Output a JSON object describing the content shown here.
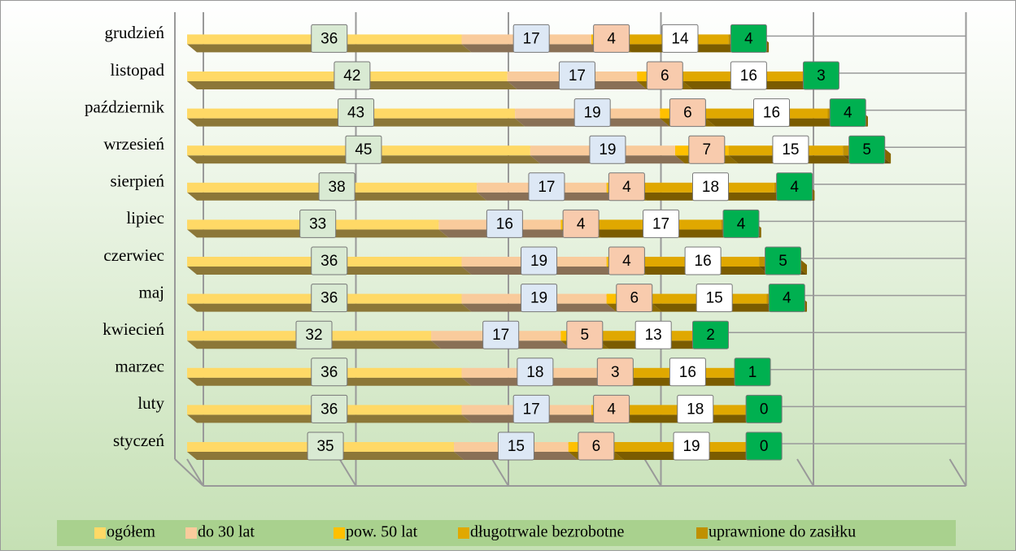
{
  "chart_data": {
    "type": "stacked-bar-horizontal-3d",
    "categories": [
      "styczeń",
      "luty",
      "marzec",
      "kwiecień",
      "maj",
      "czerwiec",
      "lipiec",
      "sierpień",
      "wrzesień",
      "październik",
      "listopad",
      "grudzień"
    ],
    "series": [
      {
        "name": "ogółem",
        "color": "#ffd966",
        "label_color": "#d9ead3",
        "values": [
          35,
          36,
          36,
          32,
          36,
          36,
          33,
          38,
          45,
          43,
          42,
          36
        ]
      },
      {
        "name": "do 30 lat",
        "color": "#f9cb9c",
        "label_color": "#dde8f5",
        "values": [
          15,
          17,
          18,
          17,
          19,
          19,
          16,
          17,
          19,
          19,
          17,
          17
        ]
      },
      {
        "name": "pow. 50 lat",
        "color": "#ffc000",
        "label_color": "#f8cbad",
        "values": [
          6,
          4,
          3,
          5,
          6,
          4,
          4,
          4,
          7,
          6,
          6,
          4
        ]
      },
      {
        "name": "długotrwale bezrobotne",
        "color": "#e0a800",
        "label_color": "#ffffff",
        "values": [
          19,
          18,
          16,
          13,
          15,
          16,
          17,
          18,
          15,
          16,
          16,
          14
        ]
      },
      {
        "name": "uprawnione do zasiłku",
        "color": "#bf9000",
        "label_color": "#00b050",
        "values": [
          0,
          0,
          1,
          2,
          4,
          5,
          4,
          4,
          5,
          4,
          3,
          4
        ]
      }
    ],
    "xlim": [
      0,
      100
    ],
    "xticks": [
      0,
      20,
      40,
      60,
      80,
      100
    ],
    "grid": true,
    "legend": "bottom"
  }
}
